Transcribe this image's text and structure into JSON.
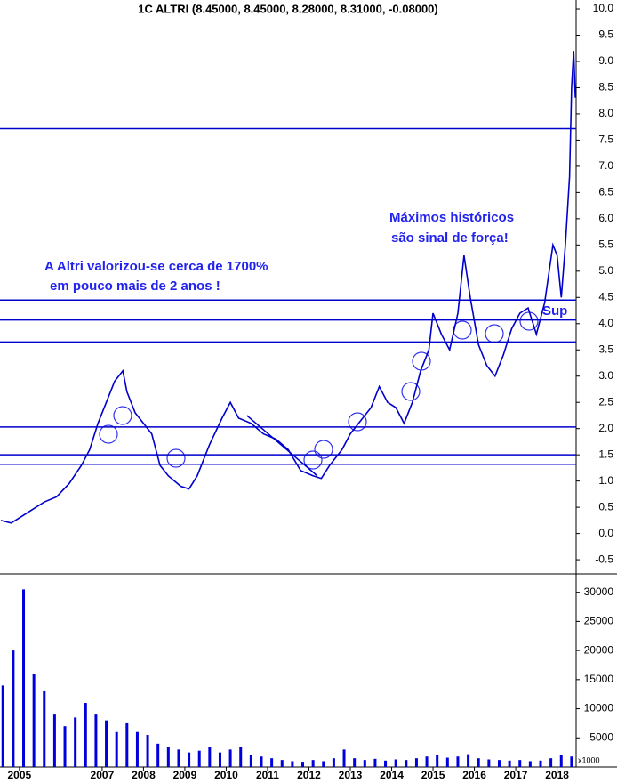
{
  "chart_data": [
    {
      "type": "line",
      "title": "1C ALTRI (8.45000, 8.45000, 8.28000, 8.31000, -0.08000)",
      "color": "#0000cc",
      "x": [
        2004.55,
        2004.8,
        2005.0,
        2005.3,
        2005.6,
        2005.9,
        2006.2,
        2006.5,
        2006.7,
        2006.9,
        2007.1,
        2007.3,
        2007.5,
        2007.6,
        2007.8,
        2008.0,
        2008.2,
        2008.4,
        2008.6,
        2008.9,
        2009.1,
        2009.3,
        2009.6,
        2009.9,
        2010.1,
        2010.3,
        2010.6,
        2010.9,
        2011.2,
        2011.5,
        2011.8,
        2012.1,
        2012.3,
        2012.5,
        2012.8,
        2013.0,
        2013.2,
        2013.5,
        2013.7,
        2013.9,
        2014.1,
        2014.3,
        2014.5,
        2014.7,
        2014.9,
        2015.0,
        2015.2,
        2015.4,
        2015.6,
        2015.75,
        2015.9,
        2016.1,
        2016.3,
        2016.5,
        2016.7,
        2016.9,
        2017.1,
        2017.3,
        2017.5,
        2017.7,
        2017.9,
        2018.0,
        2018.1,
        2018.2,
        2018.3,
        2018.35,
        2018.4,
        2018.44
      ],
      "values": [
        0.25,
        0.2,
        0.3,
        0.45,
        0.6,
        0.7,
        0.95,
        1.3,
        1.6,
        2.1,
        2.5,
        2.9,
        3.1,
        2.7,
        2.3,
        2.1,
        1.9,
        1.3,
        1.1,
        0.9,
        0.85,
        1.1,
        1.7,
        2.2,
        2.5,
        2.2,
        2.1,
        1.9,
        1.8,
        1.6,
        1.2,
        1.1,
        1.05,
        1.3,
        1.6,
        1.9,
        2.1,
        2.4,
        2.8,
        2.5,
        2.4,
        2.1,
        2.5,
        3.1,
        3.5,
        4.2,
        3.8,
        3.5,
        4.2,
        5.3,
        4.5,
        3.6,
        3.2,
        3.0,
        3.4,
        3.9,
        4.2,
        4.3,
        3.8,
        4.4,
        5.5,
        5.3,
        4.5,
        5.5,
        6.8,
        8.5,
        9.2,
        8.31
      ],
      "xlim": [
        2004.53,
        2018.46
      ],
      "ylim": [
        -0.77,
        10.17
      ],
      "yticks": [
        {
          "value": 10,
          "label": "10.0"
        },
        9.5,
        {
          "value": 9,
          "label": "9.0"
        },
        8.5,
        {
          "value": 8,
          "label": "8.0"
        },
        7.5,
        {
          "value": 7,
          "label": "7.0"
        },
        6.5,
        {
          "value": 6,
          "label": "6.0"
        },
        5.5,
        {
          "value": 5,
          "label": "5.0"
        },
        4.5,
        {
          "value": 4,
          "label": "4.0"
        },
        3.5,
        {
          "value": 3,
          "label": "3.0"
        },
        2.5,
        {
          "value": 2,
          "label": "2.0"
        },
        1.5,
        {
          "value": 1,
          "label": "1.0"
        },
        0.5,
        {
          "value": 0,
          "label": "0.0"
        },
        -0.5
      ],
      "hlines": [
        7.72,
        4.45,
        4.07,
        3.65,
        2.03,
        1.5,
        1.32
      ],
      "trendline": {
        "x": [
          2010.5,
          2012.2
        ],
        "values": [
          2.25,
          1.1
        ]
      },
      "annotations": [
        "A Altri valorizou-se cerca de 1700%",
        "em pouco mais de 2 anos !",
        "Máximos históricos",
        "são sinal de força!",
        "Sup"
      ]
    },
    {
      "type": "bar",
      "color": "#0000dd",
      "x": [
        2004.6,
        2004.85,
        2005.1,
        2005.35,
        2005.6,
        2005.85,
        2006.1,
        2006.35,
        2006.6,
        2006.85,
        2007.1,
        2007.35,
        2007.6,
        2007.85,
        2008.1,
        2008.35,
        2008.6,
        2008.85,
        2009.1,
        2009.35,
        2009.6,
        2009.85,
        2010.1,
        2010.35,
        2010.6,
        2010.85,
        2011.1,
        2011.35,
        2011.6,
        2011.85,
        2012.1,
        2012.35,
        2012.6,
        2012.85,
        2013.1,
        2013.35,
        2013.6,
        2013.85,
        2014.1,
        2014.35,
        2014.6,
        2014.85,
        2015.1,
        2015.35,
        2015.6,
        2015.85,
        2016.1,
        2016.35,
        2016.6,
        2016.85,
        2017.1,
        2017.35,
        2017.6,
        2017.85,
        2018.1,
        2018.35
      ],
      "values": [
        14000,
        20000,
        30500,
        16000,
        13000,
        9000,
        7000,
        8500,
        11000,
        9000,
        8000,
        6000,
        7500,
        6000,
        5500,
        4000,
        3500,
        3000,
        2500,
        2800,
        3500,
        2500,
        3000,
        3500,
        2000,
        1800,
        1500,
        1200,
        1000,
        900,
        1200,
        1000,
        1500,
        3000,
        1500,
        1200,
        1400,
        1100,
        1300,
        1200,
        1500,
        1800,
        2000,
        1600,
        1800,
        2200,
        1500,
        1300,
        1200,
        1100,
        1200,
        1000,
        1100,
        1500,
        2000,
        1800
      ],
      "xlim": [
        2004.53,
        2018.46
      ],
      "ylim": [
        0,
        32700
      ],
      "yticks": [
        5000,
        10000,
        15000,
        20000,
        25000,
        30000
      ],
      "xticks": [
        2005,
        2007,
        2008,
        2009,
        2010,
        2011,
        2012,
        2013,
        2014,
        2015,
        2016,
        2017,
        2018
      ],
      "unit_label": "x1000"
    }
  ]
}
